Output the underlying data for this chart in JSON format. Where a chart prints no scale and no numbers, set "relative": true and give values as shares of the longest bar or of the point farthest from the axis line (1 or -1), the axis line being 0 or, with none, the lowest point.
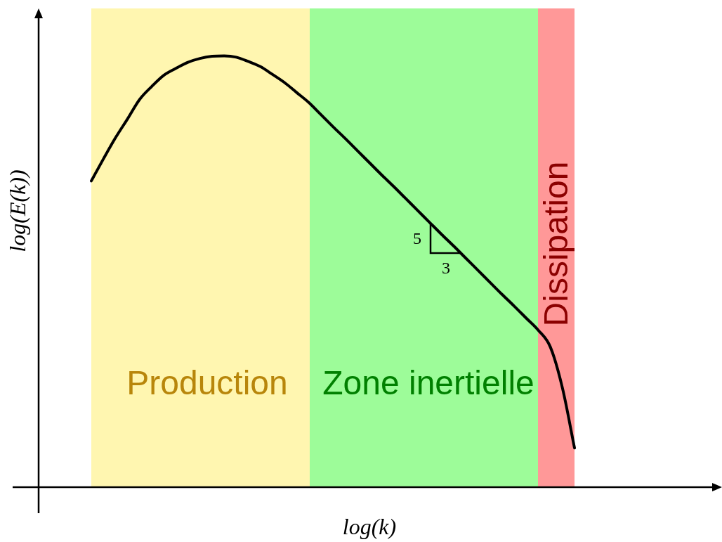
{
  "chart_data": {
    "type": "line",
    "xlabel": "log(k)",
    "ylabel": "log(E(k))",
    "categories": [
      null,
      null,
      null,
      null,
      null,
      null,
      null,
      null,
      null,
      null,
      null,
      null,
      null,
      null,
      null,
      null,
      null,
      null,
      null,
      null,
      null,
      null,
      null,
      null,
      null,
      null,
      null,
      null,
      null,
      null,
      null,
      null,
      null,
      null,
      null,
      null,
      null,
      null,
      null,
      null,
      null
    ],
    "values": [
      0.71,
      0.761,
      0.81,
      0.854,
      0.899,
      0.929,
      0.955,
      0.971,
      0.985,
      0.994,
      0.999,
      1,
      0.997,
      0.987,
      0.975,
      0.957,
      0.938,
      0.915,
      0.892,
      0.864,
      0.836,
      0.809,
      0.781,
      0.753,
      0.725,
      0.698,
      0.67,
      0.642,
      0.614,
      0.586,
      0.559,
      0.531,
      0.503,
      0.475,
      0.447,
      0.42,
      0.392,
      0.364,
      0.325,
      0.23,
      0.091
    ],
    "color": "#000000",
    "relative": true,
    "marker": "none",
    "line_style": "solid",
    "tick_labels": false,
    "annotations": [
      "Production",
      "Zone inertielle",
      "Dissipation",
      "5",
      "3"
    ]
  }
}
